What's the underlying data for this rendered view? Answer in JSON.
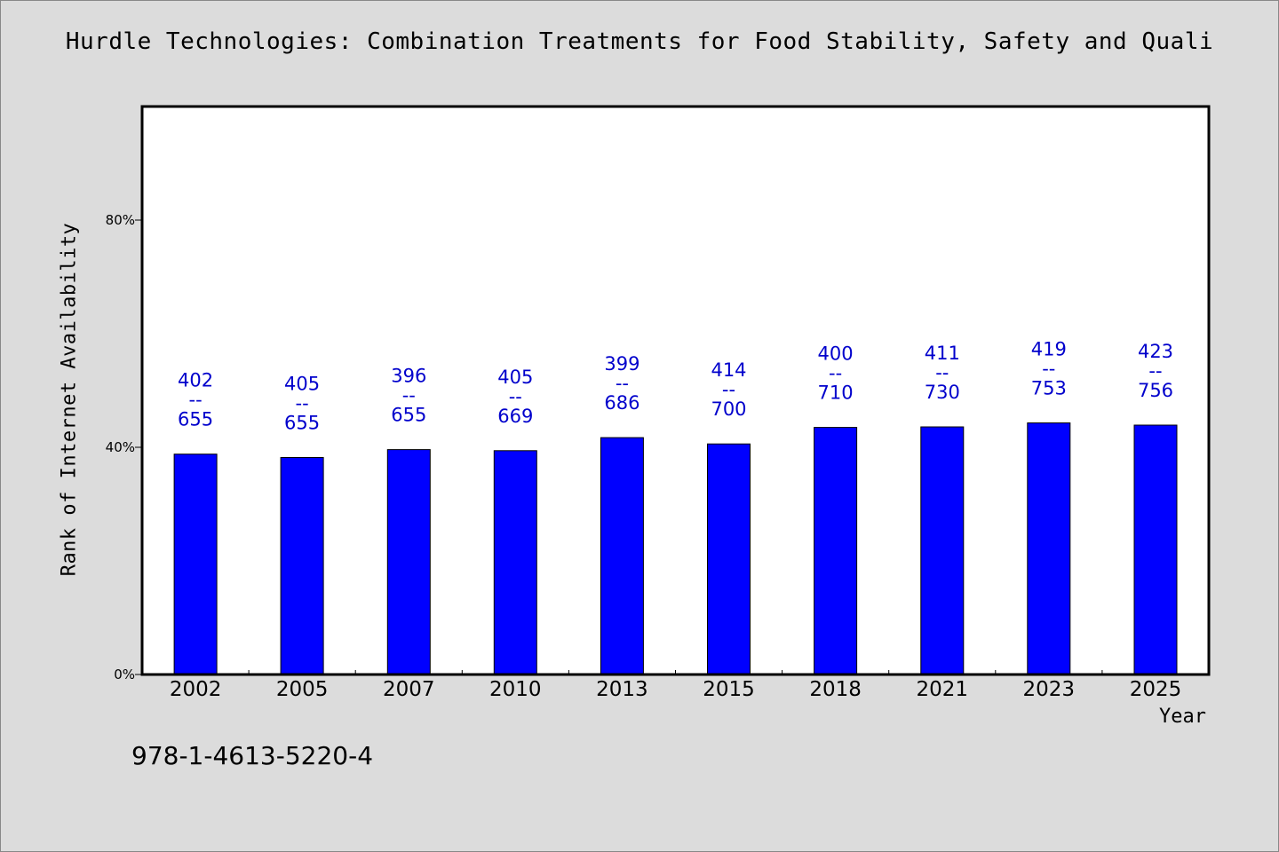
{
  "chart_data": {
    "type": "bar",
    "title": "Hurdle Technologies: Combination Treatments for Food Stability, Safety and Quali",
    "xlabel": "Year",
    "ylabel": "Rank of Internet Availability",
    "ylim": [
      0,
      100
    ],
    "yticks": [
      0,
      40,
      80
    ],
    "ytick_labels": [
      "0%",
      "40%",
      "80%"
    ],
    "categories": [
      "2002",
      "2005",
      "2007",
      "2010",
      "2013",
      "2015",
      "2018",
      "2021",
      "2023",
      "2025"
    ],
    "values": [
      38.8,
      38.2,
      39.6,
      39.4,
      41.7,
      40.6,
      43.5,
      43.6,
      44.3,
      43.9
    ],
    "data_labels": [
      {
        "top": "402",
        "sep": "--",
        "bottom": "655"
      },
      {
        "top": "405",
        "sep": "--",
        "bottom": "655"
      },
      {
        "top": "396",
        "sep": "--",
        "bottom": "655"
      },
      {
        "top": "405",
        "sep": "--",
        "bottom": "669"
      },
      {
        "top": "399",
        "sep": "--",
        "bottom": "686"
      },
      {
        "top": "414",
        "sep": "--",
        "bottom": "700"
      },
      {
        "top": "400",
        "sep": "--",
        "bottom": "710"
      },
      {
        "top": "411",
        "sep": "--",
        "bottom": "730"
      },
      {
        "top": "419",
        "sep": "--",
        "bottom": "753"
      },
      {
        "top": "423",
        "sep": "--",
        "bottom": "756"
      }
    ],
    "bar_color": "#0000ff",
    "label_color": "#0000cc",
    "plot_background": "#ffffff",
    "page_background": "#dcdcdc",
    "grid": false,
    "legend": "none"
  },
  "footnote": "978-1-4613-5220-4"
}
